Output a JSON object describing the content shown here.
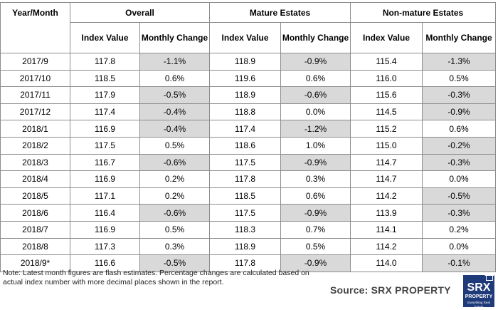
{
  "table": {
    "header_year": "Year/Month",
    "groups": [
      "Overall",
      "Mature Estates",
      "Non-mature Estates"
    ],
    "subheaders": [
      "Index Value",
      "Monthly Change"
    ],
    "rows": [
      [
        "2017/9",
        "117.8",
        "-1.1%",
        "118.9",
        "-0.9%",
        "115.4",
        "-1.3%"
      ],
      [
        "2017/10",
        "118.5",
        "0.6%",
        "119.6",
        "0.6%",
        "116.0",
        "0.5%"
      ],
      [
        "2017/11",
        "117.9",
        "-0.5%",
        "118.9",
        "-0.6%",
        "115.6",
        "-0.3%"
      ],
      [
        "2017/12",
        "117.4",
        "-0.4%",
        "118.8",
        "0.0%",
        "114.5",
        "-0.9%"
      ],
      [
        "2018/1",
        "116.9",
        "-0.4%",
        "117.4",
        "-1.2%",
        "115.2",
        "0.6%"
      ],
      [
        "2018/2",
        "117.5",
        "0.5%",
        "118.6",
        "1.0%",
        "115.0",
        "-0.2%"
      ],
      [
        "2018/3",
        "116.7",
        "-0.6%",
        "117.5",
        "-0.9%",
        "114.7",
        "-0.3%"
      ],
      [
        "2018/4",
        "116.9",
        "0.2%",
        "117.8",
        "0.3%",
        "114.7",
        "0.0%"
      ],
      [
        "2018/5",
        "117.1",
        "0.2%",
        "118.5",
        "0.6%",
        "114.2",
        "-0.5%"
      ],
      [
        "2018/6",
        "116.4",
        "-0.6%",
        "117.5",
        "-0.9%",
        "113.9",
        "-0.3%"
      ],
      [
        "2018/7",
        "116.9",
        "0.5%",
        "118.3",
        "0.7%",
        "114.1",
        "0.2%"
      ],
      [
        "2018/8",
        "117.3",
        "0.3%",
        "118.9",
        "0.5%",
        "114.2",
        "0.0%"
      ],
      [
        "2018/9*",
        "116.6",
        "-0.5%",
        "117.8",
        "-0.9%",
        "114.0",
        "-0.1%"
      ]
    ]
  },
  "note": "Note: Latest month figures are flash estimates. Percentage changes are calculated based on actual index number with more decimal places shown in the report.",
  "source": "Source:  SRX PROPERTY",
  "logo": {
    "brand": "SRX",
    "sub": "PROPERTY",
    "tagline": "Everything Real Estate",
    "color": "#1f3a78"
  },
  "colors": {
    "negative_cell_bg": "#d9d9d9",
    "border": "#8c8c8c"
  }
}
